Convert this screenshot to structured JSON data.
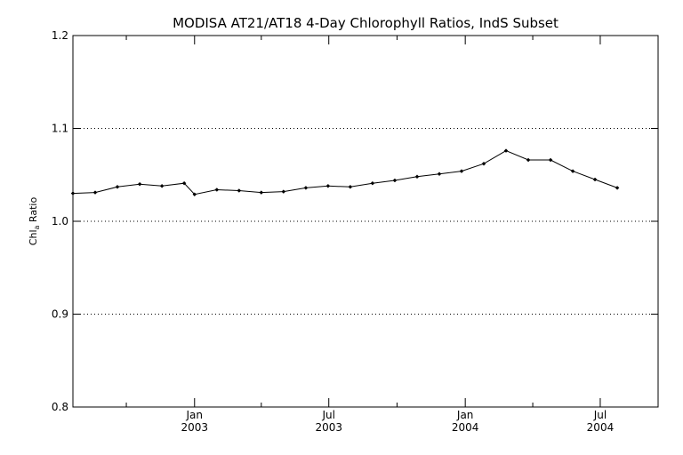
{
  "chart_data": {
    "type": "line",
    "title": "MODISA AT21/AT18 4-Day Chlorophyll Ratios, IndS Subset",
    "ylabel": "Chl_a Ratio",
    "ylabel_parts": {
      "main": "Chl",
      "sub": "a",
      "rest": " Ratio"
    },
    "xlabel": "",
    "ylim": [
      0.8,
      1.2
    ],
    "yticks": [
      "0.8",
      "0.9",
      "1.0",
      "1.1",
      "1.2"
    ],
    "y_gridlines": [
      0.9,
      1.0,
      1.1
    ],
    "grid_style": "dotted horizontal",
    "xlim": [
      "2002-07-21",
      "2004-09-17"
    ],
    "x_major_ticks": [
      {
        "date": "2003-01-01",
        "month": "Jan",
        "year": "2003"
      },
      {
        "date": "2003-07-01",
        "month": "Jul",
        "year": "2003"
      },
      {
        "date": "2004-01-01",
        "month": "Jan",
        "year": "2004"
      },
      {
        "date": "2004-07-01",
        "month": "Jul",
        "year": "2004"
      }
    ],
    "x_minor_ticks": [
      "2002-10-01",
      "2003-04-01",
      "2003-10-01",
      "2004-04-01"
    ],
    "series": [
      {
        "color": "#000000",
        "marker": "diamond",
        "points": [
          {
            "x": "2002-07-21",
            "y": 1.03
          },
          {
            "x": "2002-08-20",
            "y": 1.031
          },
          {
            "x": "2002-09-19",
            "y": 1.037
          },
          {
            "x": "2002-10-19",
            "y": 1.04
          },
          {
            "x": "2002-11-18",
            "y": 1.038
          },
          {
            "x": "2002-12-18",
            "y": 1.041
          },
          {
            "x": "2003-01-01",
            "y": 1.029
          },
          {
            "x": "2003-01-31",
            "y": 1.034
          },
          {
            "x": "2003-03-02",
            "y": 1.033
          },
          {
            "x": "2003-04-01",
            "y": 1.031
          },
          {
            "x": "2003-05-01",
            "y": 1.032
          },
          {
            "x": "2003-05-31",
            "y": 1.036
          },
          {
            "x": "2003-06-30",
            "y": 1.038
          },
          {
            "x": "2003-07-30",
            "y": 1.037
          },
          {
            "x": "2003-08-29",
            "y": 1.041
          },
          {
            "x": "2003-09-28",
            "y": 1.044
          },
          {
            "x": "2003-10-28",
            "y": 1.048
          },
          {
            "x": "2003-11-27",
            "y": 1.051
          },
          {
            "x": "2003-12-27",
            "y": 1.054
          },
          {
            "x": "2004-01-26",
            "y": 1.062
          },
          {
            "x": "2004-02-25",
            "y": 1.076
          },
          {
            "x": "2004-03-26",
            "y": 1.066
          },
          {
            "x": "2004-04-25",
            "y": 1.066
          },
          {
            "x": "2004-05-25",
            "y": 1.054
          },
          {
            "x": "2004-06-24",
            "y": 1.045
          },
          {
            "x": "2004-07-24",
            "y": 1.036
          }
        ]
      }
    ]
  }
}
